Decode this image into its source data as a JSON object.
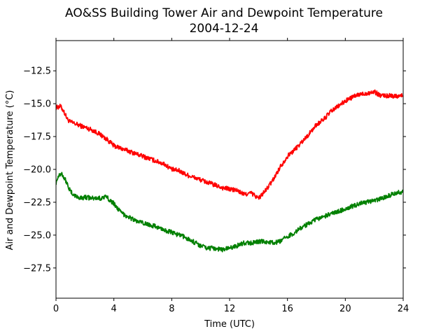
{
  "chart_data": {
    "type": "line",
    "title": "AO&SS Building Tower Air and Dewpoint Temperature",
    "subtitle": "2004-12-24",
    "xlabel": "Time (UTC)",
    "ylabel": "Air and Dewpoint Temperature (°C)",
    "xlim": [
      0,
      24
    ],
    "ylim": [
      -29.8,
      -10.2
    ],
    "xticks": [
      0,
      4,
      8,
      12,
      16,
      20,
      24
    ],
    "xtick_labels": [
      "0",
      "4",
      "8",
      "12",
      "16",
      "20",
      "24"
    ],
    "yticks": [
      -27.5,
      -25.0,
      -22.5,
      -20.0,
      -17.5,
      -15.0,
      -12.5
    ],
    "ytick_labels": [
      "−27.5",
      "−25.0",
      "−22.5",
      "−20.0",
      "−17.5",
      "−15.0",
      "−12.5"
    ],
    "grid": false,
    "legend": "none",
    "series": [
      {
        "color": "#ff0000",
        "x": [
          0,
          0.3,
          0.5,
          0.8,
          1.0,
          1.5,
          2.0,
          2.5,
          3.0,
          3.5,
          4.0,
          4.5,
          5.0,
          6.0,
          7.0,
          7.5,
          8.0,
          8.5,
          9.0,
          9.5,
          10.0,
          10.5,
          11.0,
          11.5,
          12.0,
          12.5,
          13.0,
          13.5,
          14.0,
          14.5,
          15.0,
          15.5,
          16.0,
          16.5,
          17.0,
          17.5,
          18.0,
          18.5,
          19.0,
          19.5,
          20.0,
          20.5,
          21.0,
          21.5,
          22.0,
          22.5,
          23.0,
          23.5,
          24.0
        ],
        "values": [
          -15.3,
          -15.2,
          -15.5,
          -16.2,
          -16.4,
          -16.6,
          -16.8,
          -17.0,
          -17.3,
          -17.7,
          -18.2,
          -18.4,
          -18.6,
          -19.0,
          -19.4,
          -19.6,
          -20.0,
          -20.1,
          -20.4,
          -20.6,
          -20.8,
          -21.0,
          -21.2,
          -21.4,
          -21.5,
          -21.6,
          -21.9,
          -21.8,
          -22.2,
          -21.6,
          -20.8,
          -19.8,
          -19.0,
          -18.5,
          -17.9,
          -17.3,
          -16.6,
          -16.2,
          -15.6,
          -15.2,
          -14.8,
          -14.5,
          -14.3,
          -14.2,
          -14.1,
          -14.4,
          -14.4,
          -14.4,
          -14.4
        ]
      },
      {
        "color": "#008000",
        "x": [
          0,
          0.2,
          0.4,
          0.7,
          1.0,
          1.3,
          1.7,
          2.0,
          2.5,
          3.0,
          3.5,
          4.0,
          4.5,
          5.0,
          5.5,
          6.0,
          6.5,
          7.0,
          7.5,
          8.0,
          8.5,
          9.0,
          9.5,
          10.0,
          10.5,
          11.0,
          11.5,
          12.0,
          12.5,
          13.0,
          13.5,
          14.0,
          14.5,
          15.0,
          15.5,
          16.0,
          16.5,
          17.0,
          17.5,
          18.0,
          18.5,
          19.0,
          19.5,
          20.0,
          20.5,
          21.0,
          21.5,
          22.0,
          22.5,
          23.0,
          23.5,
          24.0
        ],
        "values": [
          -21.0,
          -20.4,
          -20.3,
          -20.9,
          -21.7,
          -22.0,
          -22.2,
          -22.1,
          -22.2,
          -22.2,
          -22.1,
          -22.6,
          -23.3,
          -23.6,
          -23.9,
          -24.1,
          -24.2,
          -24.4,
          -24.6,
          -24.8,
          -25.0,
          -25.2,
          -25.5,
          -25.8,
          -26.0,
          -26.0,
          -26.1,
          -26.0,
          -25.8,
          -25.6,
          -25.6,
          -25.5,
          -25.5,
          -25.6,
          -25.5,
          -25.1,
          -24.8,
          -24.4,
          -24.1,
          -23.8,
          -23.6,
          -23.4,
          -23.2,
          -23.0,
          -22.8,
          -22.6,
          -22.5,
          -22.4,
          -22.2,
          -22.0,
          -21.8,
          -21.7
        ]
      }
    ]
  }
}
